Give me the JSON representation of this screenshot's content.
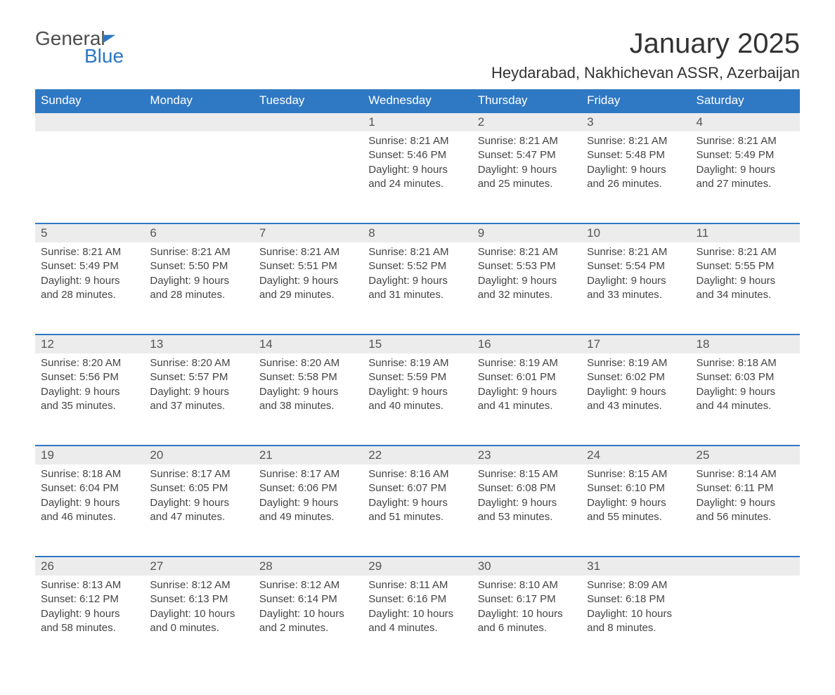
{
  "brand": {
    "general": "General",
    "blue": "Blue"
  },
  "title": "January 2025",
  "location": "Heydarabad, Nakhichevan ASSR, Azerbaijan",
  "theme": {
    "header_bg": "#2f78c3",
    "header_text": "#ffffff",
    "daynum_bg": "#ececec",
    "daynum_border": "#2f78c3",
    "body_bg": "#ffffff",
    "text_color": "#444444",
    "title_fontsize_pt": 30,
    "location_fontsize_pt": 17,
    "cell_fontsize_pt": 11
  },
  "weekdays": [
    "Sunday",
    "Monday",
    "Tuesday",
    "Wednesday",
    "Thursday",
    "Friday",
    "Saturday"
  ],
  "weeks": [
    [
      null,
      null,
      null,
      {
        "n": "1",
        "sr": "Sunrise: 8:21 AM",
        "ss": "Sunset: 5:46 PM",
        "d1": "Daylight: 9 hours",
        "d2": "and 24 minutes."
      },
      {
        "n": "2",
        "sr": "Sunrise: 8:21 AM",
        "ss": "Sunset: 5:47 PM",
        "d1": "Daylight: 9 hours",
        "d2": "and 25 minutes."
      },
      {
        "n": "3",
        "sr": "Sunrise: 8:21 AM",
        "ss": "Sunset: 5:48 PM",
        "d1": "Daylight: 9 hours",
        "d2": "and 26 minutes."
      },
      {
        "n": "4",
        "sr": "Sunrise: 8:21 AM",
        "ss": "Sunset: 5:49 PM",
        "d1": "Daylight: 9 hours",
        "d2": "and 27 minutes."
      }
    ],
    [
      {
        "n": "5",
        "sr": "Sunrise: 8:21 AM",
        "ss": "Sunset: 5:49 PM",
        "d1": "Daylight: 9 hours",
        "d2": "and 28 minutes."
      },
      {
        "n": "6",
        "sr": "Sunrise: 8:21 AM",
        "ss": "Sunset: 5:50 PM",
        "d1": "Daylight: 9 hours",
        "d2": "and 28 minutes."
      },
      {
        "n": "7",
        "sr": "Sunrise: 8:21 AM",
        "ss": "Sunset: 5:51 PM",
        "d1": "Daylight: 9 hours",
        "d2": "and 29 minutes."
      },
      {
        "n": "8",
        "sr": "Sunrise: 8:21 AM",
        "ss": "Sunset: 5:52 PM",
        "d1": "Daylight: 9 hours",
        "d2": "and 31 minutes."
      },
      {
        "n": "9",
        "sr": "Sunrise: 8:21 AM",
        "ss": "Sunset: 5:53 PM",
        "d1": "Daylight: 9 hours",
        "d2": "and 32 minutes."
      },
      {
        "n": "10",
        "sr": "Sunrise: 8:21 AM",
        "ss": "Sunset: 5:54 PM",
        "d1": "Daylight: 9 hours",
        "d2": "and 33 minutes."
      },
      {
        "n": "11",
        "sr": "Sunrise: 8:21 AM",
        "ss": "Sunset: 5:55 PM",
        "d1": "Daylight: 9 hours",
        "d2": "and 34 minutes."
      }
    ],
    [
      {
        "n": "12",
        "sr": "Sunrise: 8:20 AM",
        "ss": "Sunset: 5:56 PM",
        "d1": "Daylight: 9 hours",
        "d2": "and 35 minutes."
      },
      {
        "n": "13",
        "sr": "Sunrise: 8:20 AM",
        "ss": "Sunset: 5:57 PM",
        "d1": "Daylight: 9 hours",
        "d2": "and 37 minutes."
      },
      {
        "n": "14",
        "sr": "Sunrise: 8:20 AM",
        "ss": "Sunset: 5:58 PM",
        "d1": "Daylight: 9 hours",
        "d2": "and 38 minutes."
      },
      {
        "n": "15",
        "sr": "Sunrise: 8:19 AM",
        "ss": "Sunset: 5:59 PM",
        "d1": "Daylight: 9 hours",
        "d2": "and 40 minutes."
      },
      {
        "n": "16",
        "sr": "Sunrise: 8:19 AM",
        "ss": "Sunset: 6:01 PM",
        "d1": "Daylight: 9 hours",
        "d2": "and 41 minutes."
      },
      {
        "n": "17",
        "sr": "Sunrise: 8:19 AM",
        "ss": "Sunset: 6:02 PM",
        "d1": "Daylight: 9 hours",
        "d2": "and 43 minutes."
      },
      {
        "n": "18",
        "sr": "Sunrise: 8:18 AM",
        "ss": "Sunset: 6:03 PM",
        "d1": "Daylight: 9 hours",
        "d2": "and 44 minutes."
      }
    ],
    [
      {
        "n": "19",
        "sr": "Sunrise: 8:18 AM",
        "ss": "Sunset: 6:04 PM",
        "d1": "Daylight: 9 hours",
        "d2": "and 46 minutes."
      },
      {
        "n": "20",
        "sr": "Sunrise: 8:17 AM",
        "ss": "Sunset: 6:05 PM",
        "d1": "Daylight: 9 hours",
        "d2": "and 47 minutes."
      },
      {
        "n": "21",
        "sr": "Sunrise: 8:17 AM",
        "ss": "Sunset: 6:06 PM",
        "d1": "Daylight: 9 hours",
        "d2": "and 49 minutes."
      },
      {
        "n": "22",
        "sr": "Sunrise: 8:16 AM",
        "ss": "Sunset: 6:07 PM",
        "d1": "Daylight: 9 hours",
        "d2": "and 51 minutes."
      },
      {
        "n": "23",
        "sr": "Sunrise: 8:15 AM",
        "ss": "Sunset: 6:08 PM",
        "d1": "Daylight: 9 hours",
        "d2": "and 53 minutes."
      },
      {
        "n": "24",
        "sr": "Sunrise: 8:15 AM",
        "ss": "Sunset: 6:10 PM",
        "d1": "Daylight: 9 hours",
        "d2": "and 55 minutes."
      },
      {
        "n": "25",
        "sr": "Sunrise: 8:14 AM",
        "ss": "Sunset: 6:11 PM",
        "d1": "Daylight: 9 hours",
        "d2": "and 56 minutes."
      }
    ],
    [
      {
        "n": "26",
        "sr": "Sunrise: 8:13 AM",
        "ss": "Sunset: 6:12 PM",
        "d1": "Daylight: 9 hours",
        "d2": "and 58 minutes."
      },
      {
        "n": "27",
        "sr": "Sunrise: 8:12 AM",
        "ss": "Sunset: 6:13 PM",
        "d1": "Daylight: 10 hours",
        "d2": "and 0 minutes."
      },
      {
        "n": "28",
        "sr": "Sunrise: 8:12 AM",
        "ss": "Sunset: 6:14 PM",
        "d1": "Daylight: 10 hours",
        "d2": "and 2 minutes."
      },
      {
        "n": "29",
        "sr": "Sunrise: 8:11 AM",
        "ss": "Sunset: 6:16 PM",
        "d1": "Daylight: 10 hours",
        "d2": "and 4 minutes."
      },
      {
        "n": "30",
        "sr": "Sunrise: 8:10 AM",
        "ss": "Sunset: 6:17 PM",
        "d1": "Daylight: 10 hours",
        "d2": "and 6 minutes."
      },
      {
        "n": "31",
        "sr": "Sunrise: 8:09 AM",
        "ss": "Sunset: 6:18 PM",
        "d1": "Daylight: 10 hours",
        "d2": "and 8 minutes."
      },
      null
    ]
  ]
}
